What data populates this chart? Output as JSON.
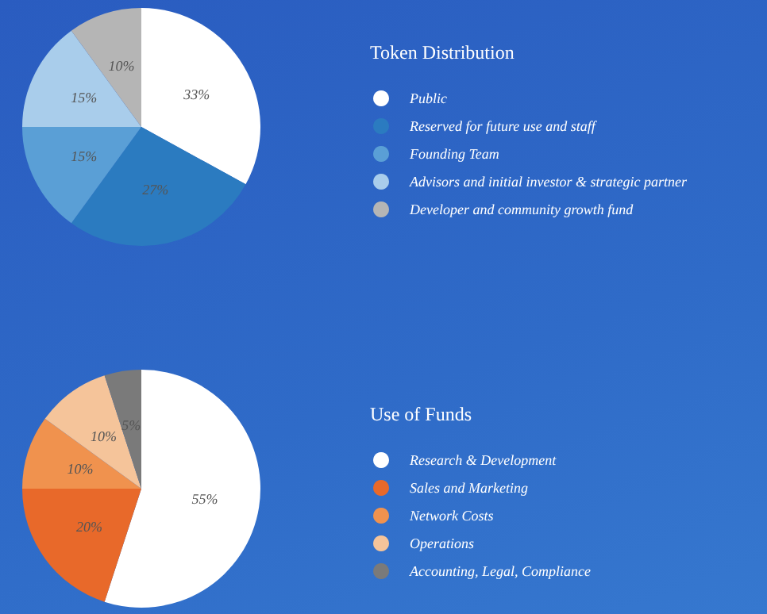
{
  "chart_data": [
    {
      "type": "pie",
      "title": "Token Distribution",
      "categories": [
        "Public",
        "Reserved for future use and staff",
        "Founding Team",
        "Advisors and initial investor & strategic partner",
        "Developer and community growth fund"
      ],
      "values": [
        33,
        27,
        15,
        15,
        10
      ],
      "value_labels": [
        "33%",
        "27%",
        "15%",
        "15%",
        "10%"
      ],
      "colors": [
        "#ffffff",
        "#2b7bc0",
        "#5a9fd6",
        "#a9cdeb",
        "#b5b5b5"
      ],
      "legend": "right"
    },
    {
      "type": "pie",
      "title": "Use of Funds",
      "categories": [
        "Research & Development",
        "Sales and Marketing",
        "Network Costs",
        "Operations",
        "Accounting, Legal, Compliance"
      ],
      "values": [
        55,
        20,
        10,
        10,
        5
      ],
      "value_labels": [
        "55%",
        "20%",
        "10%",
        "10%",
        "5%"
      ],
      "colors": [
        "#ffffff",
        "#e8692a",
        "#f0924e",
        "#f5c49a",
        "#7a7a7a"
      ],
      "legend": "right"
    }
  ]
}
